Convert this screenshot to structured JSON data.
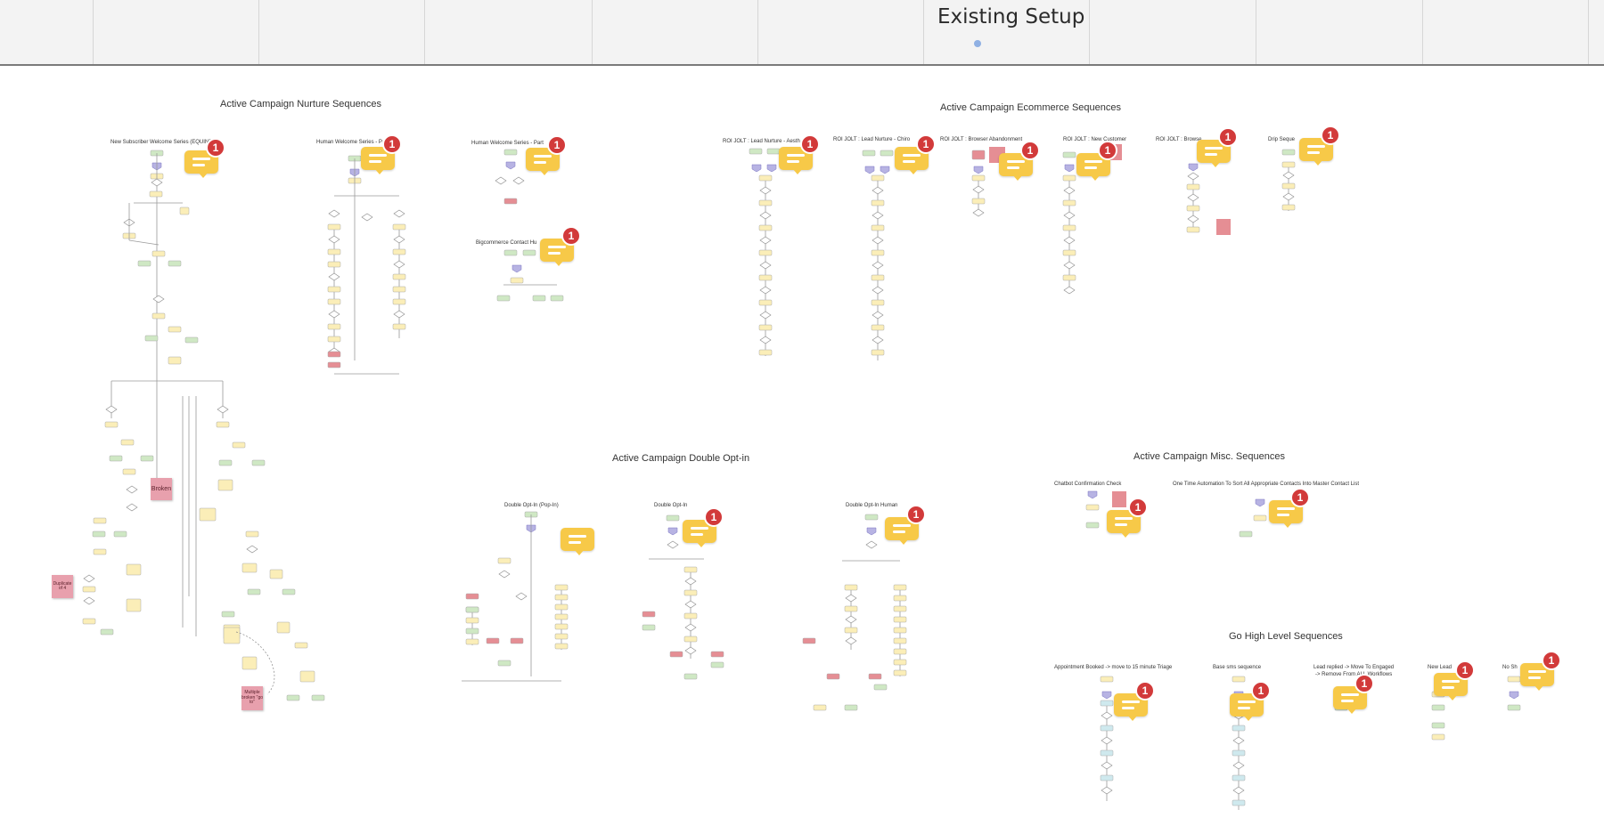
{
  "frame": {
    "title": "Existing Setup"
  },
  "sections": [
    {
      "id": "nurture",
      "title": "Active Campaign Nurture Sequences"
    },
    {
      "id": "ecommerce",
      "title": "Active Campaign Ecommerce Sequences"
    },
    {
      "id": "double-optin",
      "title": "Active Campaign Double Opt-in"
    },
    {
      "id": "misc",
      "title": "Active Campaign Misc. Sequences"
    },
    {
      "id": "ghl",
      "title": "Go High Level Sequences"
    }
  ],
  "flows": [
    "New Subscriber Welcome Series (EQUINE)",
    "Human Welcome Series - Pa",
    "Human Welcome Series - Part",
    "Bigcommerce Contact Hu",
    "ROI JOLT : Lead Nurture - Aesth",
    "ROI JOLT : Lead Nurture - Chiro",
    "ROI JOLT : Browser Abandonment",
    "ROI JOLT : New Customer",
    "ROI JOLT : Browse",
    "Drip Seque",
    "Double Opt-In (Pop-In)",
    "Double Opt-In",
    "Double Opt-In Human",
    "Chatbot Confirmation Check",
    "One Time Automation To Sort All Appropriate Contacts Into Master Contact List",
    "Appointment Booked -> move to 15 minute Triage",
    "Base sms sequence",
    "Lead replied -> Move To Engaged",
    "-> Remove From ALL Workflows",
    "New Lead",
    "No Sh"
  ],
  "stickies": [
    "Broken",
    "Duplicate of 4",
    "Multiple broken \"go to\""
  ],
  "comments": [
    {
      "badge": "1"
    },
    {
      "badge": "1"
    },
    {
      "badge": "1"
    },
    {
      "badge": "1"
    },
    {
      "badge": "1"
    },
    {
      "badge": "1"
    },
    {
      "badge": "1"
    },
    {
      "badge": "1"
    },
    {
      "badge": "1"
    },
    {
      "badge": "1"
    },
    {
      "badge": ""
    },
    {
      "badge": "1"
    },
    {
      "badge": "1"
    },
    {
      "badge": "1"
    },
    {
      "badge": "1"
    },
    {
      "badge": "1"
    },
    {
      "badge": "1"
    },
    {
      "badge": "1"
    },
    {
      "badge": "1"
    },
    {
      "badge": "1"
    }
  ],
  "colors": {
    "start": "#cfe8c4",
    "action": "#fbeeb8",
    "condition": "#ffffff",
    "trigger": "#b7b3e3",
    "end": "#e58e94",
    "ghl_action": "#cfe9ee",
    "line": "#9a9a9a",
    "comment": "#f7c948",
    "badge": "#d23a3a"
  }
}
